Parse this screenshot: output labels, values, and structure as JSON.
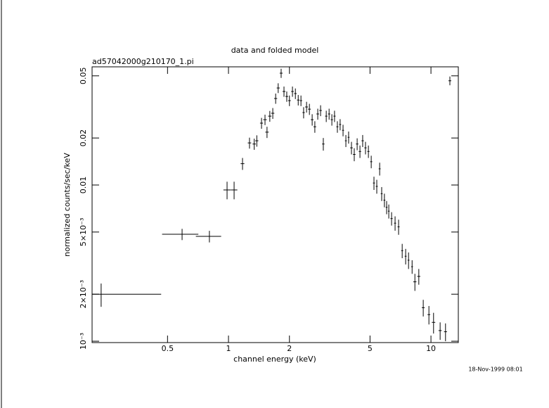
{
  "chart_data": {
    "type": "errorbar",
    "title": "data and folded model",
    "subtitle": "ad57042000g210170_1.pi",
    "x_label": "channel energy (keV)",
    "y_label": "normalized counts/sec/keV",
    "annotation": "18-Nov-1999 08:01",
    "x_scale": "log",
    "y_scale": "log",
    "color": "#000000",
    "xlim": [
      0.212,
      13.65
    ],
    "ylim": [
      0.00098,
      0.0571
    ],
    "xticks": [
      0.5,
      1,
      2,
      5,
      10
    ],
    "yticks": [
      {
        "value": 0.001,
        "label": "10⁻³"
      },
      {
        "value": 0.002,
        "label": "2×10⁻³"
      },
      {
        "value": 0.005,
        "label": "5×10⁻³"
      },
      0.01,
      0.02,
      0.05
    ],
    "x": [
      0.235,
      0.59,
      0.805,
      0.984,
      1.066,
      1.173,
      1.27,
      1.34,
      1.38,
      1.456,
      1.515,
      1.55,
      1.6,
      1.655,
      1.71,
      1.76,
      1.82,
      1.88,
      1.94,
      2.0,
      2.07,
      2.14,
      2.21,
      2.28,
      2.35,
      2.43,
      2.51,
      2.59,
      2.67,
      2.76,
      2.85,
      2.94,
      3.04,
      3.14,
      3.24,
      3.34,
      3.45,
      3.56,
      3.68,
      3.8,
      3.92,
      4.05,
      4.18,
      4.32,
      4.46,
      4.6,
      4.75,
      4.91,
      5.07,
      5.23,
      5.4,
      5.58,
      5.71,
      5.89,
      6.04,
      6.19,
      6.39,
      6.65,
      6.92,
      7.21,
      7.5,
      7.75,
      8.07,
      8.33,
      8.71,
      9.16,
      9.77,
      10.3,
      11.1,
      11.8,
      12.4
    ],
    "x_err": [
      0.23,
      0.12,
      0.115,
      0.04,
      0.04,
      0.025,
      0.025,
      0.025,
      0.025,
      0.025,
      0.03,
      0.03,
      0.03,
      0.03,
      0.03,
      0.03,
      0.03,
      0.03,
      0.03,
      0.03,
      0.03,
      0.03,
      0.03,
      0.03,
      0.03,
      0.04,
      0.04,
      0.04,
      0.04,
      0.04,
      0.04,
      0.04,
      0.04,
      0.04,
      0.04,
      0.04,
      0.04,
      0.04,
      0.04,
      0.04,
      0.04,
      0.06,
      0.06,
      0.06,
      0.06,
      0.06,
      0.06,
      0.06,
      0.06,
      0.06,
      0.06,
      0.06,
      0.06,
      0.06,
      0.06,
      0.06,
      0.08,
      0.08,
      0.08,
      0.08,
      0.08,
      0.08,
      0.08,
      0.15,
      0.15,
      0.15,
      0.15,
      0.2,
      0.2,
      0.2,
      0.2
    ],
    "values": [
      0.002,
      0.00484,
      0.00469,
      0.0093,
      0.0093,
      0.0137,
      0.0186,
      0.0183,
      0.0192,
      0.0249,
      0.0262,
      0.0218,
      0.0276,
      0.0288,
      0.0358,
      0.0418,
      0.052,
      0.0397,
      0.0369,
      0.0347,
      0.0397,
      0.0385,
      0.035,
      0.0347,
      0.0291,
      0.0316,
      0.0306,
      0.0262,
      0.0236,
      0.0285,
      0.03,
      0.0183,
      0.0276,
      0.0285,
      0.0262,
      0.0276,
      0.0236,
      0.0244,
      0.0224,
      0.0192,
      0.0202,
      0.0173,
      0.0157,
      0.0183,
      0.0164,
      0.0192,
      0.0173,
      0.0164,
      0.0141,
      0.0103,
      0.0098,
      0.0127,
      0.0088,
      0.008,
      0.0072,
      0.0068,
      0.0061,
      0.0057,
      0.0054,
      0.0038,
      0.0035,
      0.0033,
      0.003,
      0.0024,
      0.0026,
      0.00164,
      0.00148,
      0.00132,
      0.00117,
      0.00115,
      0.0465
    ],
    "y_err": [
      0.00034,
      0.0004,
      0.0004,
      0.0012,
      0.0012,
      0.0012,
      0.0015,
      0.0015,
      0.0016,
      0.002,
      0.002,
      0.0018,
      0.0022,
      0.0023,
      0.0027,
      0.003,
      0.0035,
      0.003,
      0.0028,
      0.0027,
      0.003,
      0.003,
      0.0027,
      0.0027,
      0.0024,
      0.0025,
      0.0025,
      0.0022,
      0.002,
      0.0023,
      0.0024,
      0.0017,
      0.0023,
      0.0023,
      0.0022,
      0.0023,
      0.002,
      0.002,
      0.0019,
      0.0017,
      0.0018,
      0.0016,
      0.0015,
      0.0016,
      0.0015,
      0.0017,
      0.0016,
      0.0015,
      0.0013,
      0.001,
      0.001,
      0.0012,
      0.0009,
      0.0008,
      0.0007,
      0.0007,
      0.0006,
      0.0006,
      0.0006,
      0.0004,
      0.0004,
      0.0004,
      0.0003,
      0.0003,
      0.0003,
      0.0002,
      0.0002,
      0.0002,
      0.00015,
      0.00015,
      0.003
    ]
  }
}
